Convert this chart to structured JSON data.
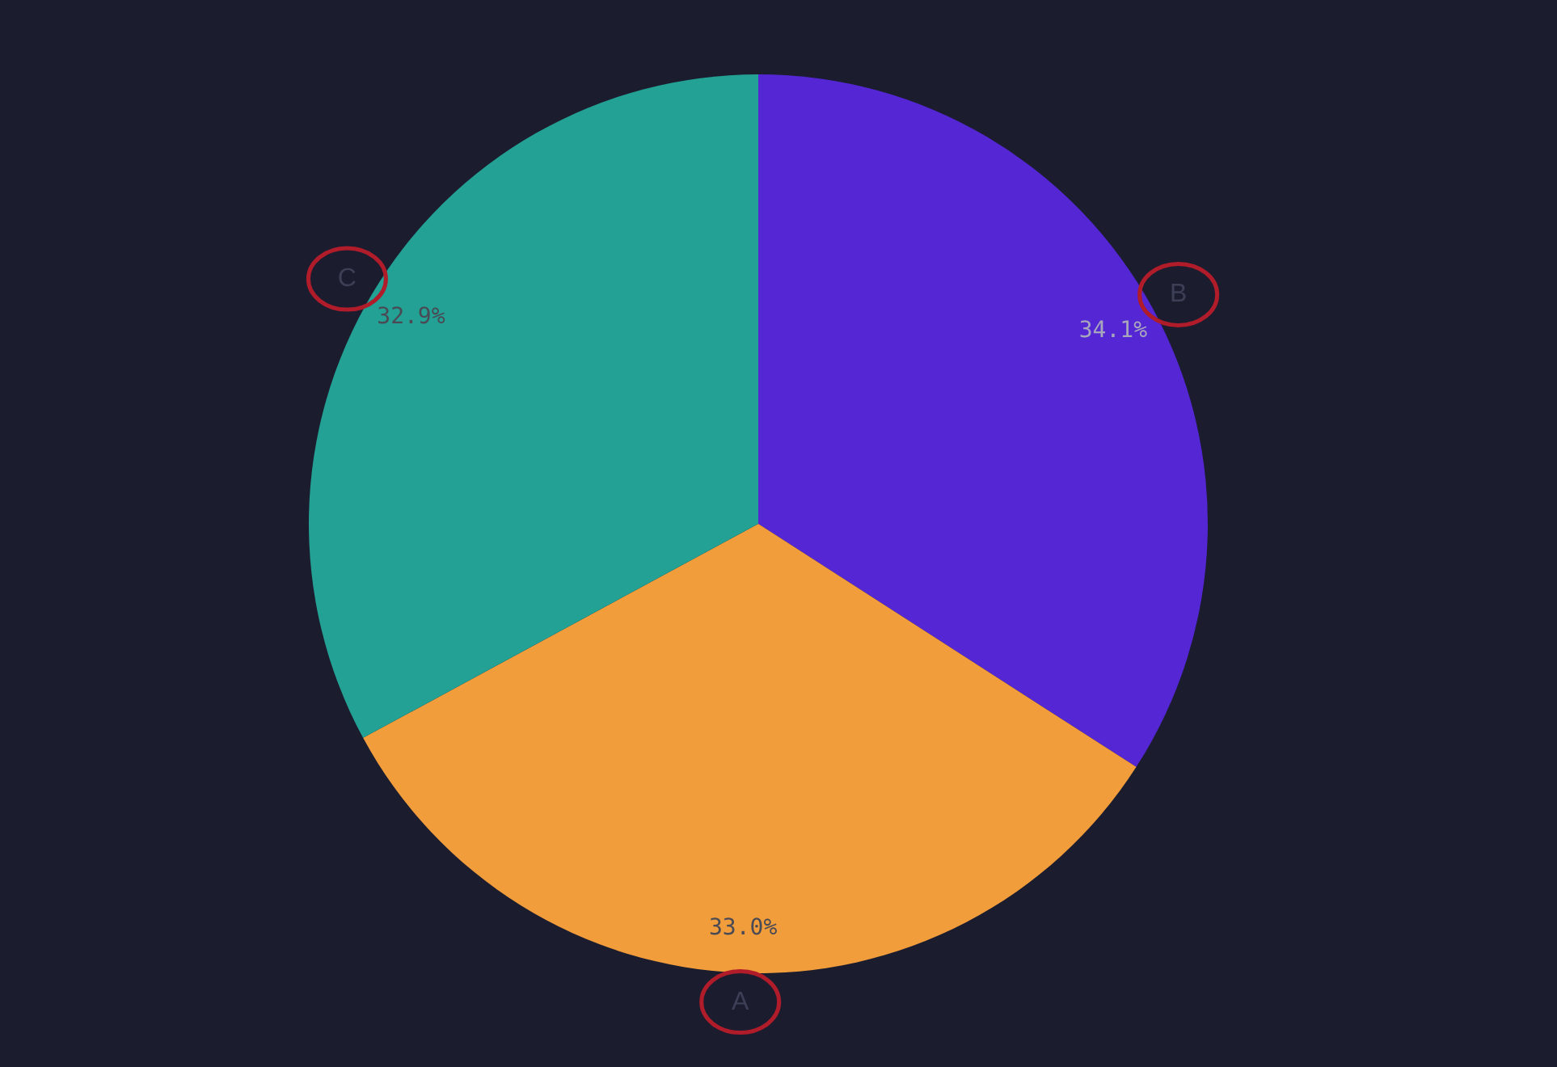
{
  "chart_data": {
    "type": "pie",
    "categories": [
      "B",
      "A",
      "C"
    ],
    "values": [
      34.1,
      33.0,
      32.9
    ],
    "colors": [
      "#5426d4",
      "#f29d3b",
      "#23a194"
    ],
    "value_labels": [
      "34.1%",
      "33.0%",
      "32.9%"
    ]
  }
}
